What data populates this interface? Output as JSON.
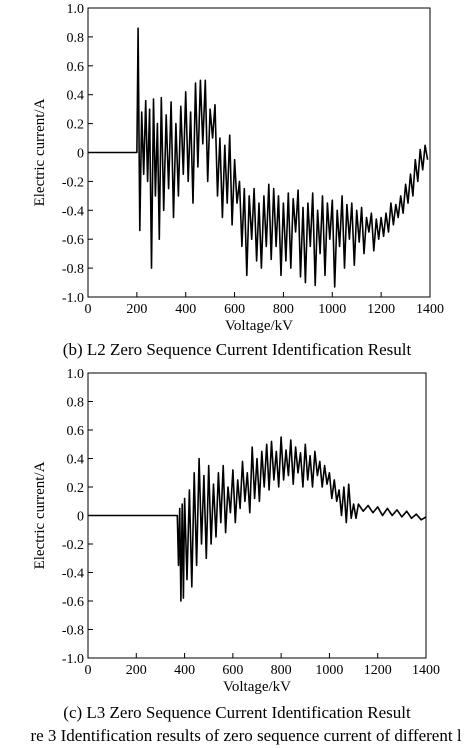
{
  "figure_caption": "re 3  Identification results of zero sequence current of different l",
  "chart_data": [
    {
      "type": "line",
      "caption": "(b) L2 Zero Sequence Current Identification Result",
      "xlabel": "Voltage/kV",
      "ylabel": "Electric current/A",
      "xlim": [
        0,
        1400
      ],
      "ylim": [
        -1.0,
        1.0
      ],
      "x_ticks": [
        "0",
        "200",
        "400",
        "600",
        "800",
        "1000",
        "1200",
        "1400"
      ],
      "y_ticks": [
        "1.0",
        "0.8",
        "0.6",
        "0.4",
        "0.2",
        "0",
        "-0.2",
        "-0.4",
        "-0.6",
        "-0.8",
        "-1.0"
      ],
      "grid": false,
      "series": [
        {
          "x": [
            0,
            200,
            205,
            212,
            220,
            228,
            236,
            244,
            252,
            260,
            268,
            276,
            284,
            292,
            300,
            310,
            320,
            330,
            340,
            350,
            360,
            370,
            380,
            390,
            400,
            410,
            420,
            430,
            440,
            450,
            460,
            470,
            480,
            490,
            500,
            510,
            520,
            530,
            540,
            550,
            560,
            570,
            580,
            590,
            600,
            610,
            620,
            630,
            640,
            650,
            660,
            670,
            680,
            690,
            700,
            710,
            720,
            730,
            740,
            750,
            760,
            770,
            780,
            790,
            800,
            810,
            820,
            830,
            840,
            850,
            860,
            870,
            880,
            890,
            900,
            910,
            920,
            930,
            940,
            950,
            960,
            970,
            980,
            990,
            1000,
            1010,
            1020,
            1030,
            1040,
            1050,
            1060,
            1070,
            1080,
            1090,
            1100,
            1110,
            1120,
            1130,
            1140,
            1150,
            1160,
            1170,
            1180,
            1190,
            1200,
            1210,
            1220,
            1230,
            1240,
            1250,
            1260,
            1270,
            1280,
            1290,
            1300,
            1310,
            1320,
            1330,
            1340,
            1350,
            1360,
            1370,
            1380,
            1390
          ],
          "y": [
            0,
            0,
            0.86,
            -0.54,
            0.28,
            -0.15,
            0.36,
            -0.2,
            0.3,
            -0.8,
            0.37,
            -0.3,
            0.2,
            -0.6,
            0.38,
            -0.4,
            0.26,
            -0.25,
            0.35,
            -0.45,
            0.2,
            -0.3,
            0.32,
            -0.15,
            0.42,
            -0.2,
            0.28,
            -0.35,
            0.48,
            -0.1,
            0.5,
            0.06,
            0.5,
            -0.2,
            0.3,
            0.1,
            0.33,
            -0.3,
            0.1,
            -0.45,
            0.05,
            -0.35,
            0.12,
            -0.5,
            -0.05,
            -0.35,
            -0.2,
            -0.65,
            -0.25,
            -0.85,
            -0.3,
            -0.6,
            -0.25,
            -0.75,
            -0.35,
            -0.8,
            -0.3,
            -0.65,
            -0.22,
            -0.74,
            -0.25,
            -0.65,
            -0.3,
            -0.85,
            -0.35,
            -0.75,
            -0.28,
            -0.8,
            -0.32,
            -0.55,
            -0.26,
            -0.86,
            -0.38,
            -0.9,
            -0.35,
            -0.65,
            -0.28,
            -0.92,
            -0.4,
            -0.7,
            -0.3,
            -0.85,
            -0.35,
            -0.6,
            -0.33,
            -0.93,
            -0.4,
            -0.65,
            -0.3,
            -0.8,
            -0.36,
            -0.6,
            -0.35,
            -0.78,
            -0.4,
            -0.62,
            -0.38,
            -0.7,
            -0.45,
            -0.55,
            -0.42,
            -0.68,
            -0.46,
            -0.6,
            -0.45,
            -0.58,
            -0.42,
            -0.55,
            -0.35,
            -0.5,
            -0.36,
            -0.45,
            -0.3,
            -0.42,
            -0.22,
            -0.35,
            -0.15,
            -0.3,
            -0.05,
            -0.2,
            0.02,
            -0.12,
            0.05,
            -0.05
          ]
        }
      ]
    },
    {
      "type": "line",
      "caption": "(c) L3 Zero Sequence Current Identification Result",
      "xlabel": "Voltage/kV",
      "ylabel": "Electric current/A",
      "xlim": [
        0,
        1400
      ],
      "ylim": [
        -1.0,
        1.0
      ],
      "x_ticks": [
        "0",
        "200",
        "400",
        "600",
        "800",
        "1000",
        "1200",
        "1400"
      ],
      "y_ticks": [
        "1.0",
        "0.8",
        "0.6",
        "0.4",
        "0.2",
        "0",
        "-0.2",
        "-0.4",
        "-0.6",
        "-0.8",
        "-1.0"
      ],
      "grid": false,
      "series": [
        {
          "x": [
            0,
            370,
            375,
            380,
            385,
            390,
            395,
            400,
            410,
            420,
            430,
            440,
            450,
            460,
            470,
            480,
            490,
            500,
            510,
            520,
            530,
            540,
            550,
            560,
            570,
            580,
            590,
            600,
            610,
            620,
            630,
            640,
            650,
            660,
            670,
            680,
            690,
            700,
            710,
            720,
            730,
            740,
            750,
            760,
            770,
            780,
            790,
            800,
            810,
            820,
            830,
            840,
            850,
            860,
            870,
            880,
            890,
            900,
            910,
            920,
            930,
            940,
            950,
            960,
            970,
            980,
            990,
            1000,
            1010,
            1020,
            1030,
            1040,
            1050,
            1060,
            1070,
            1080,
            1090,
            1100,
            1110,
            1120,
            1140,
            1160,
            1180,
            1200,
            1220,
            1240,
            1260,
            1280,
            1300,
            1320,
            1340,
            1360,
            1380,
            1400
          ],
          "y": [
            0,
            0,
            -0.35,
            0.05,
            -0.6,
            0.08,
            -0.58,
            0.12,
            -0.45,
            0.18,
            -0.5,
            0.3,
            -0.35,
            0.4,
            -0.2,
            0.28,
            -0.3,
            0.35,
            -0.2,
            0.22,
            -0.15,
            0.3,
            -0.05,
            0.35,
            -0.12,
            0.2,
            0.02,
            0.32,
            -0.05,
            0.25,
            0.05,
            0.38,
            0.1,
            0.3,
            0.02,
            0.48,
            0.12,
            0.4,
            0.1,
            0.45,
            0.2,
            0.5,
            0.18,
            0.52,
            0.25,
            0.45,
            0.2,
            0.55,
            0.25,
            0.46,
            0.28,
            0.53,
            0.22,
            0.48,
            0.3,
            0.44,
            0.2,
            0.5,
            0.25,
            0.42,
            0.2,
            0.45,
            0.28,
            0.38,
            0.2,
            0.35,
            0.22,
            0.3,
            0.12,
            0.25,
            0.1,
            0.18,
            0.0,
            0.2,
            -0.05,
            0.22,
            -0.02,
            0.08,
            -0.02,
            0.08,
            0.03,
            0.07,
            0.02,
            0.06,
            0.0,
            0.05,
            0.0,
            0.04,
            -0.01,
            0.03,
            -0.02,
            0.01,
            -0.03,
            -0.01
          ]
        }
      ]
    }
  ]
}
